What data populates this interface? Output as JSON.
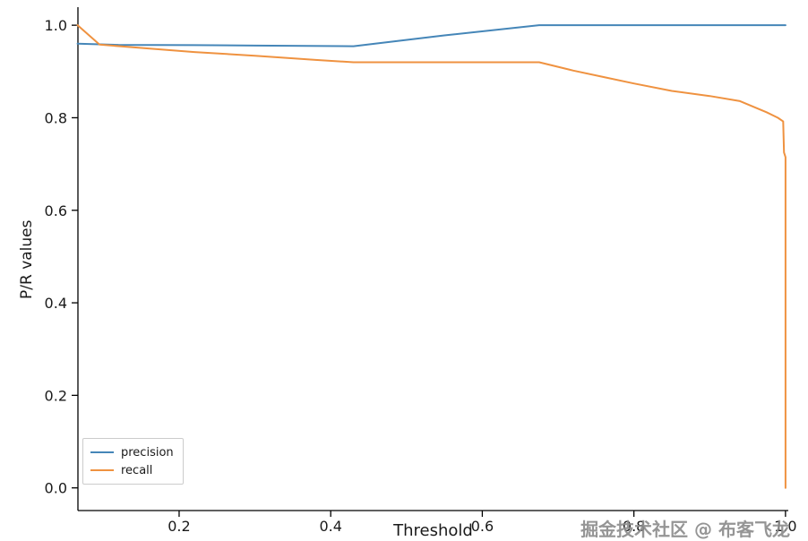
{
  "watermark": "掘金技术社区 @ 布客飞龙",
  "chart_data": {
    "type": "line",
    "title": "",
    "xlabel": "Threshold",
    "ylabel": "P/R values",
    "xlim": [
      0.0665,
      1.0037
    ],
    "ylim": [
      -0.049,
      1.039
    ],
    "x_ticks": [
      0.2,
      0.4,
      0.6,
      0.8,
      1.0
    ],
    "y_ticks": [
      0.0,
      0.2,
      0.4,
      0.6,
      0.8,
      1.0
    ],
    "grid": false,
    "legend_position": "lower left",
    "series": [
      {
        "name": "precision",
        "color": "#4586b8",
        "points": [
          [
            0.066,
            0.96
          ],
          [
            0.12,
            0.9575
          ],
          [
            0.22,
            0.957
          ],
          [
            0.3,
            0.956
          ],
          [
            0.43,
            0.9545
          ],
          [
            0.55,
            0.978
          ],
          [
            0.675,
            1.0
          ],
          [
            0.8,
            1.0
          ],
          [
            0.9,
            1.0
          ],
          [
            1.0,
            1.0
          ]
        ]
      },
      {
        "name": "recall",
        "color": "#ef9240",
        "points": [
          [
            0.066,
            1.0
          ],
          [
            0.095,
            0.958
          ],
          [
            0.15,
            0.951
          ],
          [
            0.22,
            0.942
          ],
          [
            0.3,
            0.934
          ],
          [
            0.38,
            0.925
          ],
          [
            0.43,
            0.92
          ],
          [
            0.55,
            0.92
          ],
          [
            0.675,
            0.92
          ],
          [
            0.72,
            0.902
          ],
          [
            0.76,
            0.888
          ],
          [
            0.8,
            0.874
          ],
          [
            0.85,
            0.858
          ],
          [
            0.9,
            0.847
          ],
          [
            0.94,
            0.836
          ],
          [
            0.975,
            0.812
          ],
          [
            0.99,
            0.8
          ],
          [
            0.997,
            0.792
          ],
          [
            0.998,
            0.725
          ],
          [
            1.0,
            0.715
          ],
          [
            1.0,
            0.66
          ],
          [
            1.0,
            0.0
          ]
        ]
      }
    ]
  }
}
